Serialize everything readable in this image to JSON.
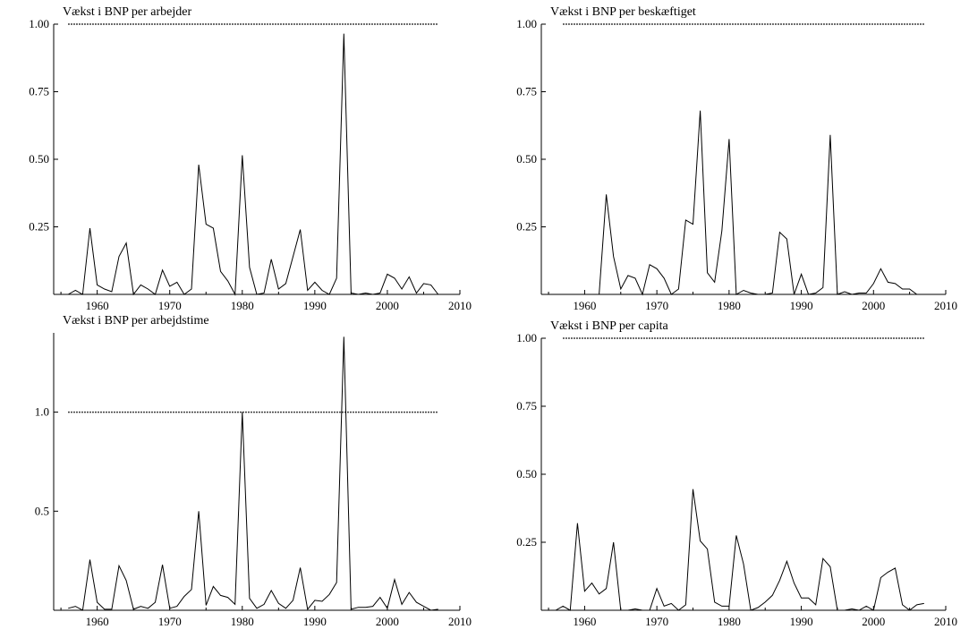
{
  "chart_data": [
    {
      "type": "line",
      "title": "Vækst i BNP per arbejder",
      "xlim": [
        1954,
        2010
      ],
      "ylim": [
        0,
        1.0
      ],
      "xticks": [
        "1960",
        "1970",
        "1980",
        "1990",
        "2000",
        "2010"
      ],
      "yticks": [
        "0.25",
        "0.50",
        "0.75",
        "1.00"
      ],
      "reference_line": {
        "y": 1.0,
        "x_range": [
          1956,
          2007
        ],
        "style": "dotted"
      },
      "x": [
        1956,
        1957,
        1958,
        1959,
        1960,
        1961,
        1962,
        1963,
        1964,
        1965,
        1966,
        1967,
        1968,
        1969,
        1970,
        1971,
        1972,
        1973,
        1974,
        1975,
        1976,
        1977,
        1978,
        1979,
        1980,
        1981,
        1982,
        1983,
        1984,
        1985,
        1986,
        1987,
        1988,
        1989,
        1990,
        1991,
        1992,
        1993,
        1994,
        1995,
        1996,
        1997,
        1998,
        1999,
        2000,
        2001,
        2002,
        2003,
        2004,
        2005,
        2006,
        2007
      ],
      "y": [
        0.0,
        0.015,
        0.0,
        0.245,
        0.035,
        0.02,
        0.01,
        0.14,
        0.19,
        0.0,
        0.035,
        0.02,
        0.0,
        0.09,
        0.03,
        0.045,
        0.0,
        0.02,
        0.48,
        0.26,
        0.245,
        0.085,
        0.05,
        0.0,
        0.515,
        0.1,
        0.0,
        0.005,
        0.13,
        0.02,
        0.04,
        0.14,
        0.24,
        0.015,
        0.045,
        0.015,
        0.0,
        0.06,
        0.965,
        0.005,
        0.0,
        0.005,
        0.0,
        0.005,
        0.075,
        0.06,
        0.02,
        0.065,
        0.005,
        0.04,
        0.035,
        0.0
      ]
    },
    {
      "type": "line",
      "title": "Vækst i BNP per beskæftiget",
      "xlim": [
        1954,
        2010
      ],
      "ylim": [
        0,
        1.0
      ],
      "xticks": [
        "1960",
        "1970",
        "1980",
        "1990",
        "2000",
        "2010"
      ],
      "yticks": [
        "0.25",
        "0.50",
        "0.75",
        "1.00"
      ],
      "reference_line": {
        "y": 1.0,
        "x_range": [
          1957,
          2007
        ],
        "style": "dotted"
      },
      "x": [
        1957,
        1958,
        1959,
        1960,
        1961,
        1962,
        1963,
        1964,
        1965,
        1966,
        1967,
        1968,
        1969,
        1970,
        1971,
        1972,
        1973,
        1974,
        1975,
        1976,
        1977,
        1978,
        1979,
        1980,
        1981,
        1982,
        1983,
        1984,
        1985,
        1986,
        1987,
        1988,
        1989,
        1990,
        1991,
        1992,
        1993,
        1994,
        1995,
        1996,
        1997,
        1998,
        1999,
        2000,
        2001,
        2002,
        2003,
        2004,
        2005,
        2006,
        2007
      ],
      "y": [
        0.0,
        0.0,
        0.0,
        0.0,
        0.0,
        0.0,
        0.37,
        0.14,
        0.02,
        0.07,
        0.06,
        0.0,
        0.11,
        0.095,
        0.06,
        0.0,
        0.02,
        0.275,
        0.26,
        0.68,
        0.08,
        0.045,
        0.235,
        0.575,
        0.0,
        0.015,
        0.005,
        0.0,
        0.0,
        0.005,
        0.23,
        0.205,
        0.0,
        0.075,
        0.0,
        0.005,
        0.025,
        0.59,
        0.0,
        0.01,
        0.0,
        0.005,
        0.005,
        0.04,
        0.095,
        0.045,
        0.04,
        0.02,
        0.02,
        0.0,
        0.0
      ]
    },
    {
      "type": "line",
      "title": "Vækst i BNP per arbejdstime",
      "xlim": [
        1954,
        2010
      ],
      "ylim": [
        0,
        1.4
      ],
      "xticks": [
        "1960",
        "1970",
        "1980",
        "1990",
        "2000",
        "2010"
      ],
      "yticks": [
        "0.5",
        "1.0"
      ],
      "reference_line": {
        "y": 1.0,
        "x_range": [
          1956,
          2007
        ],
        "style": "dotted"
      },
      "x": [
        1956,
        1957,
        1958,
        1959,
        1960,
        1961,
        1962,
        1963,
        1964,
        1965,
        1966,
        1967,
        1968,
        1969,
        1970,
        1971,
        1972,
        1973,
        1974,
        1975,
        1976,
        1977,
        1978,
        1979,
        1980,
        1981,
        1982,
        1983,
        1984,
        1985,
        1986,
        1987,
        1988,
        1989,
        1990,
        1991,
        1992,
        1993,
        1994,
        1995,
        1996,
        1997,
        1998,
        1999,
        2000,
        2001,
        2002,
        2003,
        2004,
        2005,
        2006,
        2007
      ],
      "y": [
        0.01,
        0.02,
        0.0,
        0.255,
        0.04,
        0.005,
        0.005,
        0.225,
        0.15,
        0.005,
        0.02,
        0.01,
        0.04,
        0.23,
        0.01,
        0.02,
        0.07,
        0.105,
        0.5,
        0.025,
        0.12,
        0.075,
        0.065,
        0.03,
        1.0,
        0.06,
        0.01,
        0.03,
        0.1,
        0.035,
        0.01,
        0.05,
        0.215,
        0.005,
        0.05,
        0.045,
        0.08,
        0.14,
        1.38,
        0.005,
        0.015,
        0.015,
        0.02,
        0.065,
        0.01,
        0.155,
        0.03,
        0.09,
        0.04,
        0.02,
        0.0,
        0.005
      ]
    },
    {
      "type": "line",
      "title": "Vækst i BNP per capita",
      "xlim": [
        1954,
        2010
      ],
      "ylim": [
        0,
        1.0
      ],
      "xticks": [
        "1960",
        "1970",
        "1980",
        "1990",
        "2000",
        "2010"
      ],
      "yticks": [
        "0.25",
        "0.50",
        "0.75",
        "1.00"
      ],
      "reference_line": {
        "y": 1.0,
        "x_range": [
          1957,
          2007
        ],
        "style": "dotted"
      },
      "x": [
        1956,
        1957,
        1958,
        1959,
        1960,
        1961,
        1962,
        1963,
        1964,
        1965,
        1966,
        1967,
        1968,
        1969,
        1970,
        1971,
        1972,
        1973,
        1974,
        1975,
        1976,
        1977,
        1978,
        1979,
        1980,
        1981,
        1982,
        1983,
        1984,
        1985,
        1986,
        1987,
        1988,
        1989,
        1990,
        1991,
        1992,
        1993,
        1994,
        1995,
        1996,
        1997,
        1998,
        1999,
        2000,
        2001,
        2002,
        2003,
        2004,
        2005,
        2006,
        2007
      ],
      "y": [
        0.0,
        0.015,
        0.0,
        0.32,
        0.07,
        0.1,
        0.06,
        0.08,
        0.25,
        0.0,
        0.0,
        0.005,
        0.0,
        0.0,
        0.08,
        0.015,
        0.025,
        0.0,
        0.02,
        0.445,
        0.255,
        0.225,
        0.03,
        0.015,
        0.015,
        0.275,
        0.17,
        0.0,
        0.01,
        0.03,
        0.055,
        0.11,
        0.18,
        0.1,
        0.045,
        0.045,
        0.02,
        0.19,
        0.16,
        0.0,
        0.0,
        0.005,
        0.0,
        0.015,
        0.0,
        0.12,
        0.14,
        0.155,
        0.02,
        0.0,
        0.02,
        0.025
      ]
    }
  ]
}
